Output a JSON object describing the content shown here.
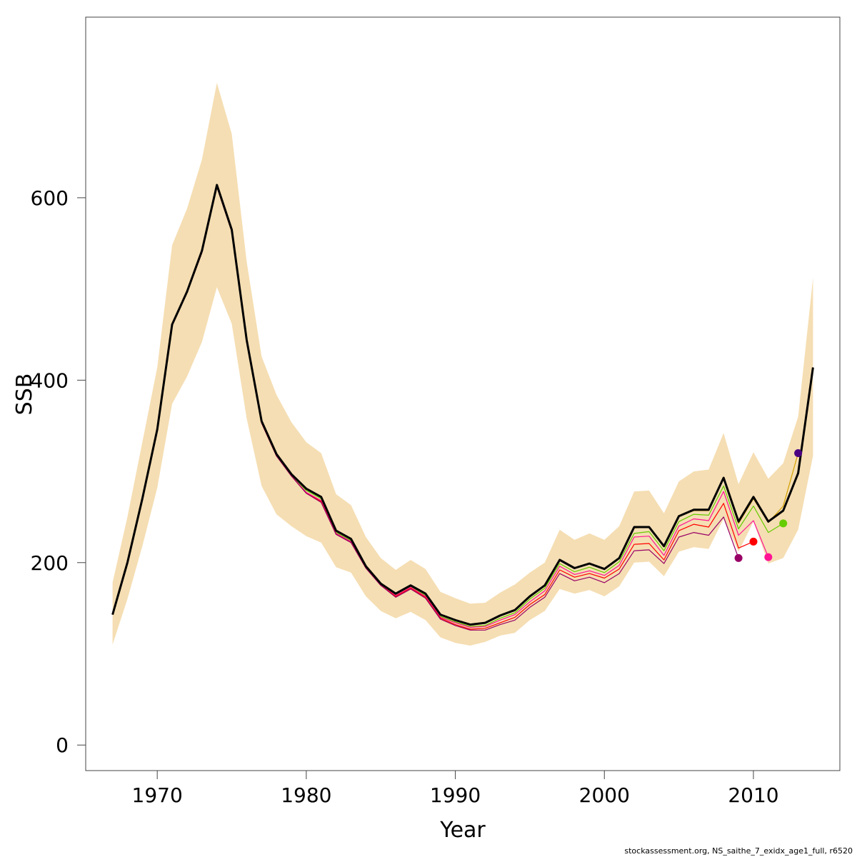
{
  "chart_data": {
    "type": "line",
    "xlabel": "Year",
    "ylabel": "SSB",
    "xlim": [
      1965.2,
      2015.8
    ],
    "ylim": [
      -28,
      798
    ],
    "x_ticks": [
      1970,
      1980,
      1990,
      2000,
      2010
    ],
    "y_ticks": [
      0,
      200,
      400,
      600
    ],
    "band_color": "#F5DEB3",
    "main_color": "#000000",
    "band": {
      "x": [
        1967,
        1968,
        1969,
        1970,
        1971,
        1972,
        1973,
        1974,
        1975,
        1976,
        1977,
        1978,
        1979,
        1980,
        1981,
        1982,
        1983,
        1984,
        1985,
        1986,
        1987,
        1988,
        1989,
        1990,
        1991,
        1992,
        1993,
        1994,
        1995,
        1996,
        1997,
        1998,
        1999,
        2000,
        2001,
        2002,
        2003,
        2004,
        2005,
        2006,
        2007,
        2008,
        2009,
        2010,
        2011,
        2012,
        2013,
        2014
      ],
      "lower": [
        110,
        160,
        218,
        282,
        374,
        404,
        442,
        502,
        462,
        358,
        284,
        253,
        240,
        229,
        222,
        195,
        189,
        163,
        147,
        139,
        146,
        137,
        118,
        112,
        109,
        113,
        120,
        123,
        137,
        147,
        171,
        166,
        170,
        163,
        174,
        200,
        201,
        185,
        212,
        217,
        215,
        248,
        212,
        245,
        199,
        205,
        236,
        317
      ],
      "upper": [
        178,
        250,
        332,
        414,
        548,
        588,
        642,
        726,
        670,
        530,
        426,
        384,
        354,
        332,
        320,
        275,
        263,
        228,
        205,
        192,
        203,
        193,
        168,
        161,
        155,
        156,
        167,
        176,
        189,
        200,
        236,
        225,
        232,
        225,
        240,
        278,
        279,
        254,
        289,
        300,
        302,
        342,
        286,
        321,
        292,
        309,
        360,
        512
      ]
    },
    "series": [
      {
        "color": "#000000",
        "x": [
          1967,
          1968,
          1969,
          1970,
          1971,
          1972,
          1973,
          1974,
          1975,
          1976,
          1977,
          1978,
          1979,
          1980,
          1981,
          1982,
          1983,
          1984,
          1985,
          1986,
          1987,
          1988,
          1989,
          1990,
          1991,
          1992,
          1993,
          1994,
          1995,
          1996,
          1997,
          1998,
          1999,
          2000,
          2001,
          2002,
          2003,
          2004,
          2005,
          2006,
          2007,
          2008,
          2009,
          2010,
          2011,
          2012,
          2013,
          2014
        ],
        "y": [
          143,
          200,
          270,
          346,
          461,
          497,
          542,
          614,
          565,
          444,
          355,
          319,
          297,
          281,
          272,
          235,
          226,
          196,
          177,
          166,
          175,
          166,
          143,
          137,
          132,
          134,
          142,
          148,
          163,
          175,
          203,
          194,
          199,
          193,
          205,
          239,
          239,
          218,
          251,
          258,
          258,
          293,
          245,
          272,
          245,
          257,
          298,
          414
        ]
      },
      {
        "color": "#D4A000",
        "x": [
          1967,
          1968,
          1969,
          1970,
          1971,
          1972,
          1973,
          1974,
          1975,
          1976,
          1977,
          1978,
          1979,
          1980,
          1981,
          1982,
          1983,
          1984,
          1985,
          1986,
          1987,
          1988,
          1989,
          1990,
          1991,
          1992,
          1993,
          1994,
          1995,
          1996,
          1997,
          1998,
          1999,
          2000,
          2001,
          2002,
          2003,
          2004,
          2005,
          2006,
          2007,
          2008,
          2009,
          2010,
          2011,
          2012,
          2013
        ],
        "y": [
          143,
          200,
          270,
          346,
          461,
          497,
          542,
          614,
          565,
          444,
          355,
          319,
          297,
          281,
          272,
          235,
          226,
          196,
          177,
          166,
          175,
          166,
          143,
          137,
          132,
          134,
          142,
          148,
          163,
          175,
          203,
          194,
          199,
          193,
          205,
          238,
          239,
          218,
          251,
          257,
          257,
          292,
          243,
          270,
          244,
          262,
          320
        ],
        "end_marker": true,
        "end_color": "#4B0082"
      },
      {
        "color": "#66CC00",
        "x": [
          1967,
          1968,
          1969,
          1970,
          1971,
          1972,
          1973,
          1974,
          1975,
          1976,
          1977,
          1978,
          1979,
          1980,
          1981,
          1982,
          1983,
          1984,
          1985,
          1986,
          1987,
          1988,
          1989,
          1990,
          1991,
          1992,
          1993,
          1994,
          1995,
          1996,
          1997,
          1998,
          1999,
          2000,
          2001,
          2002,
          2003,
          2004,
          2005,
          2006,
          2007,
          2008,
          2009,
          2010,
          2011,
          2012
        ],
        "y": [
          143,
          200,
          270,
          345,
          460,
          497,
          541,
          613,
          564,
          443,
          354,
          318,
          296,
          279,
          270,
          233,
          224,
          195,
          176,
          165,
          174,
          164,
          141,
          135,
          130,
          131,
          139,
          145,
          160,
          172,
          199,
          190,
          195,
          189,
          201,
          232,
          234,
          213,
          245,
          253,
          252,
          284,
          237,
          262,
          233,
          243
        ],
        "end_marker": true,
        "end_color": "#66CC00"
      },
      {
        "color": "#FF1493",
        "x": [
          1967,
          1968,
          1969,
          1970,
          1971,
          1972,
          1973,
          1974,
          1975,
          1976,
          1977,
          1978,
          1979,
          1980,
          1981,
          1982,
          1983,
          1984,
          1985,
          1986,
          1987,
          1988,
          1989,
          1990,
          1991,
          1992,
          1993,
          1994,
          1995,
          1996,
          1997,
          1998,
          1999,
          2000,
          2001,
          2002,
          2003,
          2004,
          2005,
          2006,
          2007,
          2008,
          2009,
          2010,
          2011
        ],
        "y": [
          143,
          200,
          270,
          345,
          460,
          496,
          540,
          612,
          563,
          442,
          353,
          317,
          295,
          277,
          268,
          232,
          223,
          194,
          175,
          164,
          173,
          163,
          140,
          134,
          129,
          130,
          137,
          143,
          157,
          169,
          196,
          187,
          191,
          186,
          197,
          228,
          229,
          208,
          240,
          248,
          246,
          278,
          230,
          246,
          206
        ],
        "end_marker": true,
        "end_color": "#FF1493"
      },
      {
        "color": "#FF0000",
        "x": [
          1967,
          1968,
          1969,
          1970,
          1971,
          1972,
          1973,
          1974,
          1975,
          1976,
          1977,
          1978,
          1979,
          1980,
          1981,
          1982,
          1983,
          1984,
          1985,
          1986,
          1987,
          1988,
          1989,
          1990,
          1991,
          1992,
          1993,
          1994,
          1995,
          1996,
          1997,
          1998,
          1999,
          2000,
          2001,
          2002,
          2003,
          2004,
          2005,
          2006,
          2007,
          2008,
          2009,
          2010
        ],
        "y": [
          143,
          200,
          270,
          345,
          460,
          496,
          540,
          612,
          563,
          442,
          353,
          317,
          295,
          276,
          267,
          231,
          222,
          194,
          175,
          163,
          172,
          162,
          139,
          132,
          127,
          128,
          134,
          140,
          154,
          165,
          192,
          184,
          188,
          183,
          193,
          220,
          221,
          203,
          235,
          242,
          239,
          265,
          216,
          223
        ],
        "end_marker": true,
        "end_color": "#FF0000"
      },
      {
        "color": "#990066",
        "x": [
          1967,
          1968,
          1969,
          1970,
          1971,
          1972,
          1973,
          1974,
          1975,
          1976,
          1977,
          1978,
          1979,
          1980,
          1981,
          1982,
          1983,
          1984,
          1985,
          1986,
          1987,
          1988,
          1989,
          1990,
          1991,
          1992,
          1993,
          1994,
          1995,
          1996,
          1997,
          1998,
          1999,
          2000,
          2001,
          2002,
          2003,
          2004,
          2005,
          2006,
          2007,
          2008,
          2009
        ],
        "y": [
          143,
          200,
          270,
          345,
          460,
          496,
          540,
          612,
          563,
          442,
          353,
          317,
          295,
          276,
          266,
          231,
          222,
          194,
          175,
          162,
          171,
          161,
          138,
          131,
          126,
          126,
          132,
          137,
          151,
          162,
          188,
          180,
          184,
          178,
          188,
          213,
          214,
          199,
          228,
          233,
          230,
          250,
          205
        ],
        "end_marker": true,
        "end_color": "#990066"
      }
    ]
  },
  "footer": "stockassessment.org, NS_saithe_7_exidx_age1_full, r6520"
}
